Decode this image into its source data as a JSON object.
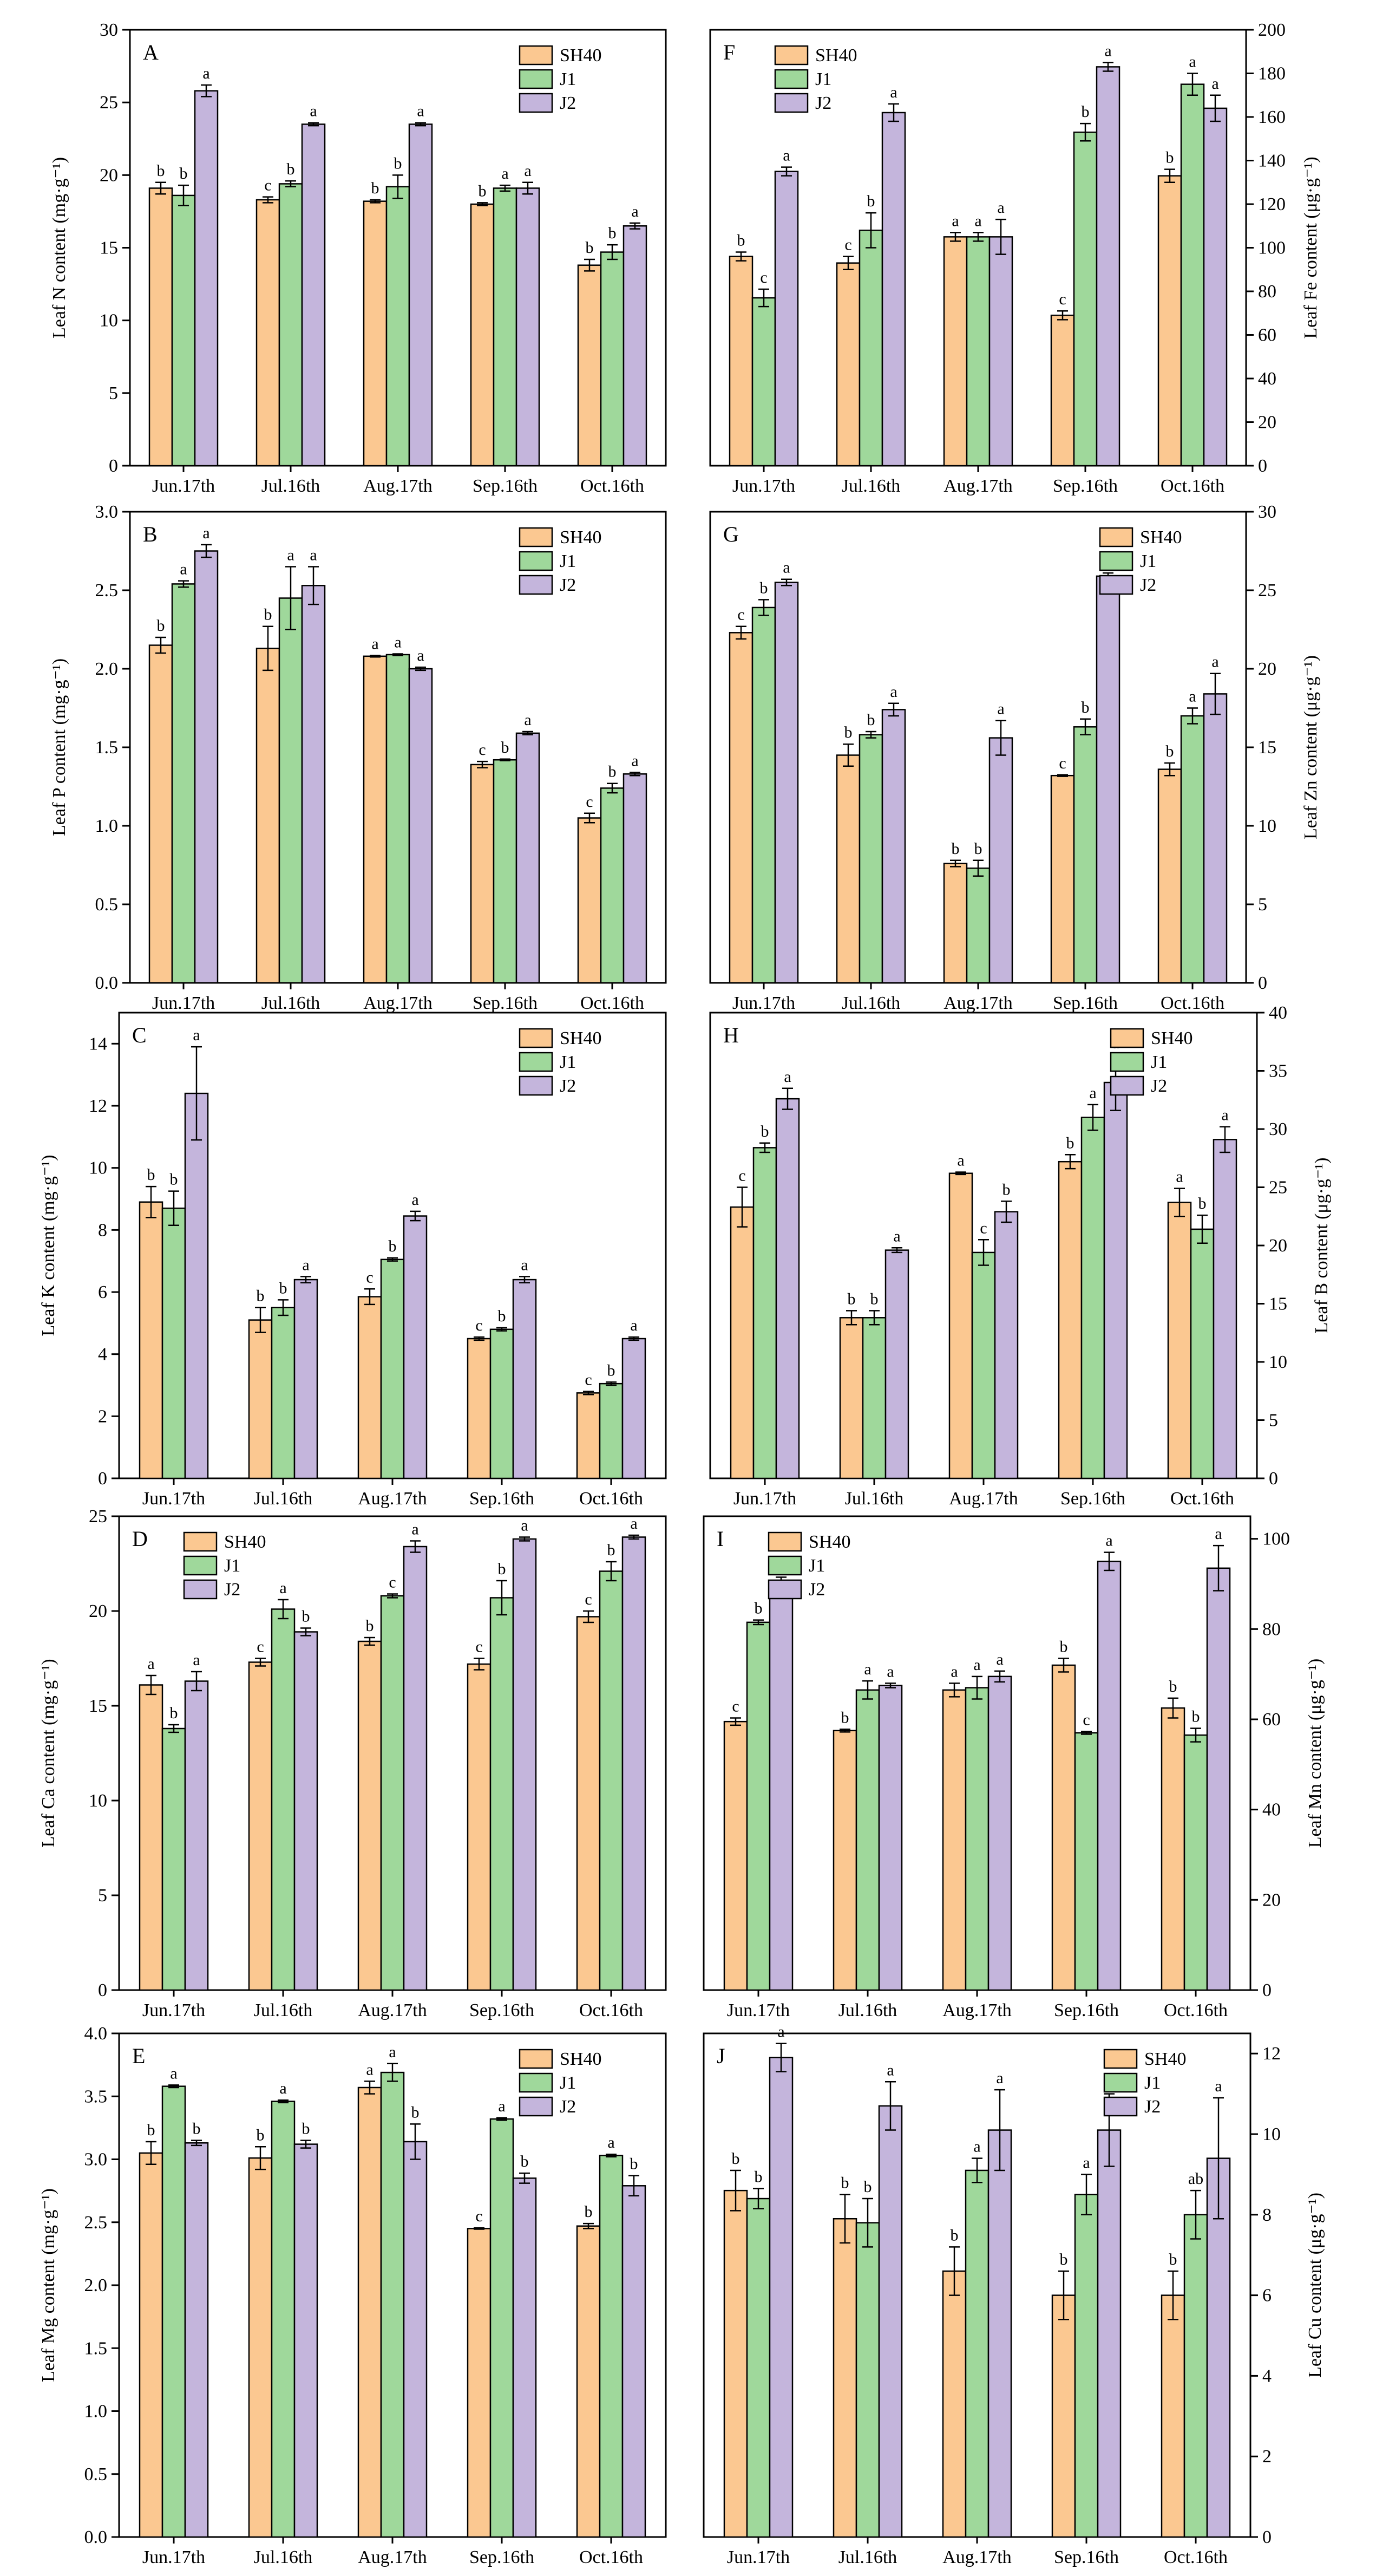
{
  "figure": {
    "months": [
      "Jun.17th",
      "Jul.16th",
      "Aug.17th",
      "Sep.16th",
      "Oct.16th"
    ],
    "legend": [
      "SH40",
      "J1",
      "J2"
    ],
    "colors": [
      "#fbc891",
      "#9fd89b",
      "#c4b5dc"
    ]
  },
  "chart_data": [
    {
      "type": "bar",
      "panel": "A",
      "ylabel": "Leaf N content (mg·g⁻¹)",
      "ylim": [
        0,
        30
      ],
      "yticks": [
        0,
        5,
        10,
        15,
        20,
        25,
        30
      ],
      "categories": [
        "Jun.17th",
        "Jul.16th",
        "Aug.17th",
        "Sep.16th",
        "Oct.16th"
      ],
      "legend_position": "top-right",
      "series": [
        {
          "name": "SH40",
          "values": [
            19.1,
            18.3,
            18.2,
            18.0,
            13.8
          ],
          "errors": [
            0.4,
            0.2,
            0.1,
            0.1,
            0.4
          ],
          "letters": [
            "b",
            "c",
            "b",
            "b",
            "b"
          ]
        },
        {
          "name": "J1",
          "values": [
            18.6,
            19.4,
            19.2,
            19.1,
            14.7
          ],
          "errors": [
            0.7,
            0.2,
            0.8,
            0.2,
            0.5
          ],
          "letters": [
            "b",
            "b",
            "b",
            "a",
            "b"
          ]
        },
        {
          "name": "J2",
          "values": [
            25.8,
            23.5,
            23.5,
            19.1,
            16.5
          ],
          "errors": [
            0.4,
            0.1,
            0.1,
            0.4,
            0.2
          ],
          "letters": [
            "a",
            "a",
            "a",
            "a",
            "a"
          ]
        }
      ]
    },
    {
      "type": "bar",
      "panel": "F",
      "ylabel": "Leaf Fe content (μg·g⁻¹)",
      "ylim": [
        0,
        200
      ],
      "yticks": [
        0,
        20,
        40,
        60,
        80,
        100,
        120,
        140,
        160,
        180,
        200
      ],
      "categories": [
        "Jun.17th",
        "Jul.16th",
        "Aug.17th",
        "Sep.16th",
        "Oct.16th"
      ],
      "legend_position": "top-left",
      "series": [
        {
          "name": "SH40",
          "values": [
            96,
            93,
            105,
            69,
            133
          ],
          "errors": [
            2,
            3,
            2,
            2,
            3
          ],
          "letters": [
            "b",
            "c",
            "a",
            "c",
            "b"
          ]
        },
        {
          "name": "J1",
          "values": [
            77,
            108,
            105,
            153,
            175
          ],
          "errors": [
            4,
            8,
            2,
            4,
            5
          ],
          "letters": [
            "c",
            "b",
            "a",
            "b",
            "a"
          ]
        },
        {
          "name": "J2",
          "values": [
            135,
            162,
            105,
            183,
            164
          ],
          "errors": [
            2,
            4,
            8,
            2,
            6
          ],
          "letters": [
            "a",
            "a",
            "a",
            "a",
            "a"
          ]
        }
      ]
    },
    {
      "type": "bar",
      "panel": "B",
      "ylabel": "Leaf P content (mg·g⁻¹)",
      "ylim": [
        0,
        3.0
      ],
      "yticks": [
        0.0,
        0.5,
        1.0,
        1.5,
        2.0,
        2.5,
        3.0
      ],
      "categories": [
        "Jun.17th",
        "Jul.16th",
        "Aug.17th",
        "Sep.16th",
        "Oct.16th"
      ],
      "legend_position": "top-right",
      "series": [
        {
          "name": "SH40",
          "values": [
            2.15,
            2.13,
            2.08,
            1.39,
            1.05
          ],
          "errors": [
            0.05,
            0.14,
            0.005,
            0.02,
            0.03
          ],
          "letters": [
            "b",
            "b",
            "a",
            "c",
            "c"
          ]
        },
        {
          "name": "J1",
          "values": [
            2.54,
            2.45,
            2.09,
            1.42,
            1.24
          ],
          "errors": [
            0.02,
            0.2,
            0.005,
            0.005,
            0.03
          ],
          "letters": [
            "a",
            "a",
            "a",
            "b",
            "b"
          ]
        },
        {
          "name": "J2",
          "values": [
            2.75,
            2.53,
            2.0,
            1.59,
            1.33
          ],
          "errors": [
            0.04,
            0.12,
            0.01,
            0.01,
            0.01
          ],
          "letters": [
            "a",
            "a",
            "a",
            "a",
            "a"
          ]
        }
      ]
    },
    {
      "type": "bar",
      "panel": "G",
      "ylabel": "Leaf Zn content (μg·g⁻¹)",
      "ylim": [
        0,
        30
      ],
      "yticks": [
        0,
        5,
        10,
        15,
        20,
        25,
        30
      ],
      "categories": [
        "Jun.17th",
        "Jul.16th",
        "Aug.17th",
        "Sep.16th",
        "Oct.16th"
      ],
      "legend_position": "top-right",
      "series": [
        {
          "name": "SH40",
          "values": [
            22.3,
            14.5,
            7.6,
            13.2,
            13.6
          ],
          "errors": [
            0.4,
            0.7,
            0.2,
            0.05,
            0.4
          ],
          "letters": [
            "c",
            "b",
            "b",
            "c",
            "b"
          ]
        },
        {
          "name": "J1",
          "values": [
            23.9,
            15.8,
            7.3,
            16.3,
            17.0
          ],
          "errors": [
            0.5,
            0.2,
            0.5,
            0.5,
            0.5
          ],
          "letters": [
            "b",
            "b",
            "b",
            "b",
            "a"
          ]
        },
        {
          "name": "J2",
          "values": [
            25.5,
            17.4,
            15.6,
            25.9,
            18.4
          ],
          "errors": [
            0.2,
            0.4,
            1.1,
            0.2,
            1.3
          ],
          "letters": [
            "a",
            "a",
            "a",
            "a",
            "a"
          ]
        }
      ]
    },
    {
      "type": "bar",
      "panel": "C",
      "ylabel": "Leaf K content (mg·g⁻¹)",
      "ylim": [
        0,
        15
      ],
      "yticks": [
        0,
        2,
        4,
        6,
        8,
        10,
        12,
        14
      ],
      "categories": [
        "Jun.17th",
        "Jul.16th",
        "Aug.17th",
        "Sep.16th",
        "Oct.16th"
      ],
      "legend_position": "top-right",
      "series": [
        {
          "name": "SH40",
          "values": [
            8.9,
            5.1,
            5.85,
            4.5,
            2.75
          ],
          "errors": [
            0.5,
            0.4,
            0.25,
            0.05,
            0.05
          ],
          "letters": [
            "b",
            "b",
            "c",
            "c",
            "c"
          ]
        },
        {
          "name": "J1",
          "values": [
            8.7,
            5.5,
            7.05,
            4.8,
            3.05
          ],
          "errors": [
            0.55,
            0.25,
            0.05,
            0.05,
            0.05
          ],
          "letters": [
            "b",
            "b",
            "b",
            "b",
            "b"
          ]
        },
        {
          "name": "J2",
          "values": [
            12.4,
            6.4,
            8.45,
            6.4,
            4.5
          ],
          "errors": [
            1.5,
            0.1,
            0.15,
            0.1,
            0.05
          ],
          "letters": [
            "a",
            "a",
            "a",
            "a",
            "a"
          ]
        }
      ]
    },
    {
      "type": "bar",
      "panel": "H",
      "ylabel": "Leaf B content (μg·g⁻¹)",
      "ylim": [
        0,
        40
      ],
      "yticks": [
        0,
        5,
        10,
        15,
        20,
        25,
        30,
        35,
        40
      ],
      "categories": [
        "Jun.17th",
        "Jul.16th",
        "Aug.17th",
        "Sep.16th",
        "Oct.16th"
      ],
      "legend_position": "top-right",
      "series": [
        {
          "name": "SH40",
          "values": [
            23.3,
            13.8,
            26.2,
            27.2,
            23.7
          ],
          "errors": [
            1.7,
            0.6,
            0.1,
            0.6,
            1.2
          ],
          "letters": [
            "c",
            "b",
            "a",
            "b",
            "a"
          ]
        },
        {
          "name": "J1",
          "values": [
            28.4,
            13.8,
            19.4,
            31.0,
            21.4
          ],
          "errors": [
            0.4,
            0.6,
            1.1,
            1.1,
            1.2
          ],
          "letters": [
            "b",
            "b",
            "c",
            "a",
            "b"
          ]
        },
        {
          "name": "J2",
          "values": [
            32.6,
            19.6,
            22.9,
            34.0,
            29.1
          ],
          "errors": [
            0.9,
            0.2,
            0.9,
            2.4,
            1.1
          ],
          "letters": [
            "a",
            "a",
            "b",
            "a",
            "a"
          ]
        }
      ]
    },
    {
      "type": "bar",
      "panel": "D",
      "ylabel": "Leaf Ca content (mg·g⁻¹)",
      "ylim": [
        0,
        25
      ],
      "yticks": [
        0,
        5,
        10,
        15,
        20,
        25
      ],
      "categories": [
        "Jun.17th",
        "Jul.16th",
        "Aug.17th",
        "Sep.16th",
        "Oct.16th"
      ],
      "legend_position": "top-left",
      "series": [
        {
          "name": "SH40",
          "values": [
            16.1,
            17.3,
            18.4,
            17.2,
            19.7
          ],
          "errors": [
            0.5,
            0.2,
            0.2,
            0.3,
            0.3
          ],
          "letters": [
            "a",
            "c",
            "b",
            "c",
            "c"
          ]
        },
        {
          "name": "J1",
          "values": [
            13.8,
            20.1,
            20.8,
            20.7,
            22.1
          ],
          "errors": [
            0.2,
            0.5,
            0.1,
            0.9,
            0.5
          ],
          "letters": [
            "b",
            "a",
            "c",
            "b",
            "b"
          ]
        },
        {
          "name": "J2",
          "values": [
            16.3,
            18.9,
            23.4,
            23.8,
            23.9
          ],
          "errors": [
            0.5,
            0.2,
            0.3,
            0.1,
            0.1
          ],
          "letters": [
            "a",
            "b",
            "a",
            "a",
            "a"
          ]
        }
      ]
    },
    {
      "type": "bar",
      "panel": "I",
      "ylabel": "Leaf Mn content (μg·g⁻¹)",
      "ylim": [
        0,
        105
      ],
      "yticks": [
        0,
        20,
        40,
        60,
        80,
        100
      ],
      "categories": [
        "Jun.17th",
        "Jul.16th",
        "Aug.17th",
        "Sep.16th",
        "Oct.16th"
      ],
      "legend_position": "top-left",
      "series": [
        {
          "name": "SH40",
          "values": [
            59.5,
            57.5,
            66.5,
            72.0,
            62.5
          ],
          "errors": [
            0.8,
            0.3,
            1.5,
            1.5,
            2.2
          ],
          "letters": [
            "c",
            "b",
            "a",
            "b",
            "b"
          ]
        },
        {
          "name": "J1",
          "values": [
            81.5,
            66.5,
            67.0,
            57.0,
            56.5
          ],
          "errors": [
            0.5,
            2.0,
            2.5,
            0.3,
            1.5
          ],
          "letters": [
            "b",
            "a",
            "a",
            "c",
            "b"
          ]
        },
        {
          "name": "J2",
          "values": [
            90.5,
            67.5,
            69.5,
            95.0,
            93.5
          ],
          "errors": [
            1.0,
            0.5,
            1.2,
            2.0,
            5.0
          ],
          "letters": [
            "a",
            "a",
            "a",
            "a",
            "a"
          ]
        }
      ]
    },
    {
      "type": "bar",
      "panel": "E",
      "ylabel": "Leaf Mg content (mg·g⁻¹)",
      "ylim": [
        0,
        4.0
      ],
      "yticks": [
        0.0,
        0.5,
        1.0,
        1.5,
        2.0,
        2.5,
        3.0,
        3.5,
        4.0
      ],
      "categories": [
        "Jun.17th",
        "Jul.16th",
        "Aug.17th",
        "Sep.16th",
        "Oct.16th"
      ],
      "legend_position": "top-right",
      "series": [
        {
          "name": "SH40",
          "values": [
            3.05,
            3.01,
            3.57,
            2.45,
            2.47
          ],
          "errors": [
            0.09,
            0.09,
            0.05,
            0.005,
            0.02
          ],
          "letters": [
            "b",
            "b",
            "a",
            "c",
            "b"
          ]
        },
        {
          "name": "J1",
          "values": [
            3.58,
            3.46,
            3.69,
            3.32,
            3.03
          ],
          "errors": [
            0.01,
            0.01,
            0.07,
            0.01,
            0.01
          ],
          "letters": [
            "a",
            "a",
            "a",
            "a",
            "a"
          ]
        },
        {
          "name": "J2",
          "values": [
            3.13,
            3.12,
            3.14,
            2.85,
            2.79
          ],
          "errors": [
            0.02,
            0.03,
            0.14,
            0.04,
            0.08
          ],
          "letters": [
            "b",
            "b",
            "b",
            "b",
            "b"
          ]
        }
      ]
    },
    {
      "type": "bar",
      "panel": "J",
      "ylabel": "Leaf Cu content (μg·g⁻¹)",
      "ylim": [
        0,
        12.5
      ],
      "yticks": [
        0,
        2,
        4,
        6,
        8,
        10,
        12
      ],
      "categories": [
        "Jun.17th",
        "Jul.16th",
        "Aug.17th",
        "Sep.16th",
        "Oct.16th"
      ],
      "legend_position": "top-right",
      "series": [
        {
          "name": "SH40",
          "values": [
            8.6,
            7.9,
            6.6,
            6.0,
            6.0
          ],
          "errors": [
            0.5,
            0.6,
            0.6,
            0.6,
            0.6
          ],
          "letters": [
            "b",
            "b",
            "b",
            "b",
            "b"
          ]
        },
        {
          "name": "J1",
          "values": [
            8.4,
            7.8,
            9.1,
            8.5,
            8.0
          ],
          "errors": [
            0.25,
            0.6,
            0.3,
            0.5,
            0.6
          ],
          "letters": [
            "b",
            "b",
            "a",
            "a",
            "ab"
          ]
        },
        {
          "name": "J2",
          "values": [
            11.9,
            10.7,
            10.1,
            10.1,
            9.4
          ],
          "errors": [
            0.35,
            0.6,
            1.0,
            0.9,
            1.5
          ],
          "letters": [
            "a",
            "a",
            "a",
            "a",
            "a"
          ]
        }
      ]
    }
  ]
}
